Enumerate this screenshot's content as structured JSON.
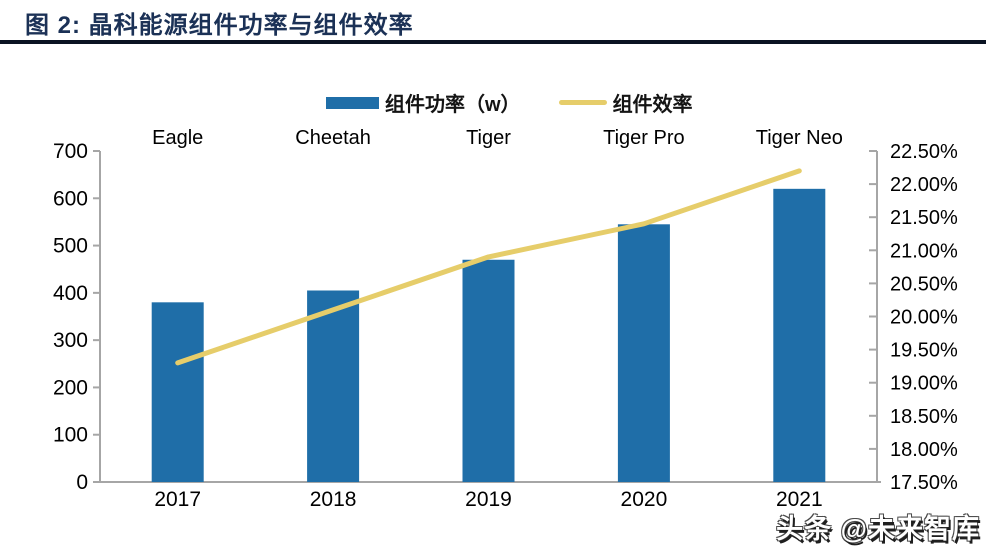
{
  "header": {
    "title": "图 2:  晶科能源组件功率与组件效率"
  },
  "legend": {
    "power": {
      "label": "组件功率（w）",
      "swatch_color": "#1F6EA8"
    },
    "efficiency": {
      "label": "组件效率",
      "swatch_color": "#E6CD6A"
    }
  },
  "watermark": "头条 @未来智库",
  "colors": {
    "bar": "#1F6EA8",
    "line": "#E6CD6A",
    "axis": "#A6A6A6",
    "tick_text": "#000000",
    "title_navy": "#1b3156"
  },
  "chart_data": {
    "type": "bar",
    "subtype": "bar+line dual axis",
    "title": "晶科能源组件功率与组件效率",
    "categories": [
      "2017",
      "2018",
      "2019",
      "2020",
      "2021"
    ],
    "category_top_labels": [
      "Eagle",
      "Cheetah",
      "Tiger",
      "Tiger Pro",
      "Tiger Neo"
    ],
    "series": [
      {
        "name": "组件功率（w）",
        "type": "bar",
        "axis": "left",
        "color": "#1F6EA8",
        "values": [
          380,
          405,
          470,
          545,
          620
        ]
      },
      {
        "name": "组件效率",
        "type": "line",
        "axis": "right",
        "color": "#E6CD6A",
        "values": [
          19.3,
          20.1,
          20.9,
          21.4,
          22.2
        ]
      }
    ],
    "left_axis": {
      "min": 0,
      "max": 700,
      "step": 100
    },
    "right_axis": {
      "min": 17.5,
      "max": 22.5,
      "step": 0.5,
      "suffix": "%",
      "decimals": 2
    },
    "grid": false,
    "legend_position": "top-center"
  }
}
